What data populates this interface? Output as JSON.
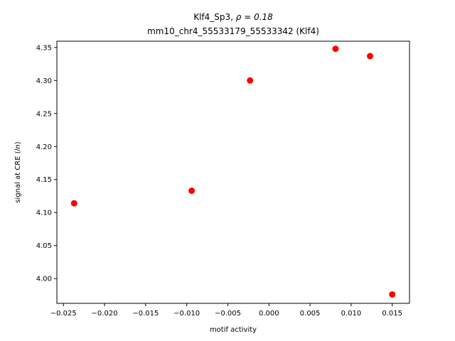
{
  "chart_data": {
    "type": "scatter",
    "title_main": "Klf4_Sp3, ",
    "title_rho": "ρ = 0.18",
    "subtitle": "mm10_chr4_55533179_55533342 (Klf4)",
    "xlabel": "motif activity",
    "ylabel_prefix": "signal at CRE (",
    "ylabel_italic": "ln",
    "ylabel_suffix": ")",
    "xlim": [
      -0.0258,
      0.0171
    ],
    "ylim": [
      3.9625,
      4.3595
    ],
    "xticks": [
      -0.025,
      -0.02,
      -0.015,
      -0.01,
      -0.005,
      0.0,
      0.005,
      0.01,
      0.015
    ],
    "xtick_labels": [
      "−0.025",
      "−0.020",
      "−0.015",
      "−0.010",
      "−0.005",
      "0.000",
      "0.005",
      "0.010",
      "0.015"
    ],
    "yticks": [
      4.0,
      4.05,
      4.1,
      4.15,
      4.2,
      4.25,
      4.3,
      4.35
    ],
    "ytick_labels": [
      "4.00",
      "4.05",
      "4.10",
      "4.15",
      "4.20",
      "4.25",
      "4.30",
      "4.35"
    ],
    "marker_color": "#ff0000",
    "grid": false,
    "points": [
      {
        "x": -0.0237,
        "y": 4.114
      },
      {
        "x": -0.0094,
        "y": 4.133
      },
      {
        "x": -0.0023,
        "y": 4.3
      },
      {
        "x": 0.0081,
        "y": 4.348
      },
      {
        "x": 0.0123,
        "y": 4.337
      },
      {
        "x": 0.015,
        "y": 3.976
      }
    ]
  }
}
